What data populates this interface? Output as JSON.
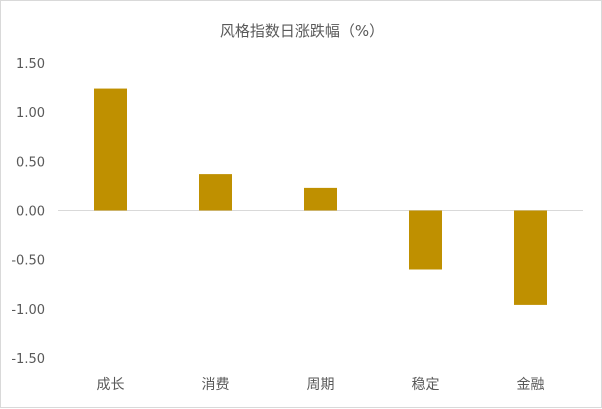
{
  "chart_data": {
    "type": "bar",
    "title": "风格指数日涨跌幅（%）",
    "categories": [
      "成长",
      "消费",
      "周期",
      "稳定",
      "金融"
    ],
    "values": [
      1.24,
      0.37,
      0.23,
      -0.6,
      -0.96
    ],
    "ylim": [
      -1.5,
      1.5
    ],
    "yticks": [
      1.5,
      1.0,
      0.5,
      0.0,
      -0.5,
      -1.0,
      -1.5
    ],
    "ytick_labels": [
      "1.50",
      "1.00",
      "0.50",
      "0.00",
      "-0.50",
      "-1.00",
      "-1.50"
    ],
    "xlabel": "",
    "ylabel": "",
    "grid": false,
    "legend": "none",
    "bar_color": "#BF9000"
  }
}
